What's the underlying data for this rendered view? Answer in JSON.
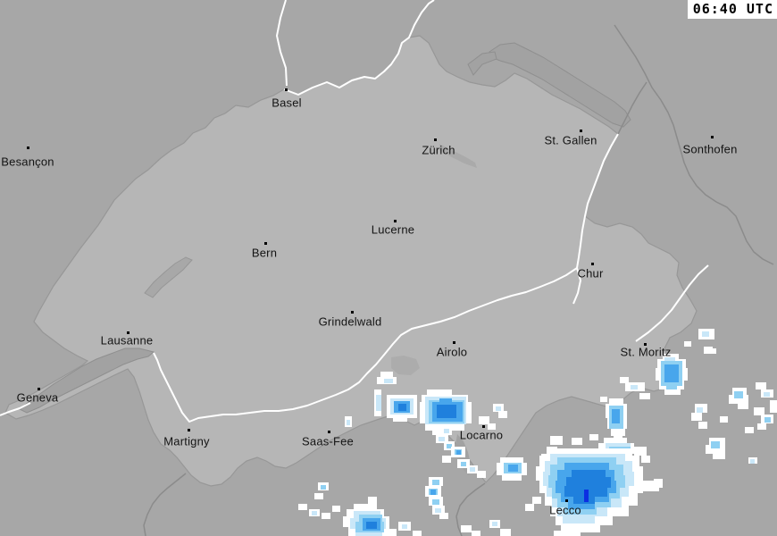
{
  "header": {
    "timestamp": "06:40 UTC"
  },
  "map": {
    "background_color": "#a7a7a7",
    "country_fill": "#b6b6b6",
    "lake_fill": "#a2a2a2",
    "border_color": "#8b8b8b",
    "river_color": "#ffffff",
    "label_color": "#141414",
    "cities": [
      {
        "name": "Basel",
        "dot": [
          320,
          100
        ],
        "label": [
          321,
          115
        ]
      },
      {
        "name": "Zürich",
        "dot": [
          487,
          156
        ],
        "label": [
          491,
          168
        ]
      },
      {
        "name": "St. Gallen",
        "dot": [
          650,
          146
        ],
        "label": [
          639,
          157
        ]
      },
      {
        "name": "Sonthofen",
        "dot": [
          797,
          153
        ],
        "label": [
          795,
          167
        ]
      },
      {
        "name": "Besançon",
        "dot": [
          31,
          165
        ],
        "label": [
          31,
          181
        ]
      },
      {
        "name": "Lucerne",
        "dot": [
          442,
          247
        ],
        "label": [
          440,
          257
        ]
      },
      {
        "name": "Bern",
        "dot": [
          297,
          272
        ],
        "label": [
          296,
          283
        ]
      },
      {
        "name": "Chur",
        "dot": [
          663,
          295
        ],
        "label": [
          661,
          306
        ]
      },
      {
        "name": "Grindelwald",
        "dot": [
          394,
          349
        ],
        "label": [
          392,
          360
        ]
      },
      {
        "name": "Lausanne",
        "dot": [
          143,
          372
        ],
        "label": [
          142,
          381
        ]
      },
      {
        "name": "Airolo",
        "dot": [
          508,
          383
        ],
        "label": [
          506,
          394
        ]
      },
      {
        "name": "St. Moritz",
        "dot": [
          722,
          385
        ],
        "label": [
          723,
          394
        ]
      },
      {
        "name": "Geneva",
        "dot": [
          43,
          435
        ],
        "label": [
          42,
          445
        ]
      },
      {
        "name": "Martigny",
        "dot": [
          211,
          481
        ],
        "label": [
          209,
          494
        ]
      },
      {
        "name": "Saas-Fee",
        "dot": [
          368,
          483
        ],
        "label": [
          367,
          494
        ]
      },
      {
        "name": "Locarno",
        "dot": [
          541,
          477
        ],
        "label": [
          539,
          487
        ]
      },
      {
        "name": "Lecco",
        "dot": [
          634,
          560
        ],
        "label": [
          633,
          571
        ]
      }
    ]
  },
  "radar": {
    "levels": {
      "1": "#ffffff",
      "2": "#c9e7f8",
      "3": "#8fd0f2",
      "4": "#48a6ec",
      "5": "#1f80dd",
      "6": "#0b2fe2"
    },
    "cells": [
      [
        1,
        426,
        416,
        14,
        8
      ],
      [
        1,
        422,
        422,
        22,
        8
      ],
      [
        2,
        430,
        424,
        10,
        5
      ],
      [
        1,
        419,
        436,
        8,
        30
      ],
      [
        2,
        421,
        442,
        6,
        18
      ],
      [
        1,
        433,
        442,
        34,
        26
      ],
      [
        2,
        437,
        446,
        26,
        18
      ],
      [
        4,
        441,
        449,
        18,
        13
      ],
      [
        5,
        446,
        452,
        9,
        8
      ],
      [
        1,
        440,
        466,
        16,
        6
      ],
      [
        1,
        478,
        436,
        28,
        8
      ],
      [
        1,
        472,
        442,
        52,
        10
      ],
      [
        1,
        470,
        450,
        58,
        24
      ],
      [
        1,
        476,
        472,
        44,
        10
      ],
      [
        1,
        484,
        480,
        22,
        7
      ],
      [
        2,
        476,
        444,
        46,
        31
      ],
      [
        3,
        480,
        448,
        40,
        26
      ],
      [
        4,
        484,
        450,
        34,
        22
      ],
      [
        5,
        489,
        453,
        22,
        15
      ],
      [
        4,
        492,
        446,
        14,
        6
      ],
      [
        1,
        494,
        478,
        12,
        8
      ],
      [
        2,
        497,
        480,
        6,
        5
      ],
      [
        1,
        488,
        486,
        14,
        10
      ],
      [
        2,
        491,
        489,
        7,
        5
      ],
      [
        1,
        497,
        494,
        12,
        10
      ],
      [
        3,
        500,
        497,
        6,
        5
      ],
      [
        1,
        505,
        500,
        16,
        12
      ],
      [
        3,
        509,
        503,
        8,
        6
      ],
      [
        4,
        511,
        504,
        5,
        5
      ],
      [
        1,
        495,
        510,
        10,
        8
      ],
      [
        1,
        512,
        514,
        14,
        10
      ],
      [
        3,
        516,
        517,
        6,
        5
      ],
      [
        1,
        523,
        521,
        12,
        9
      ],
      [
        2,
        526,
        523,
        6,
        5
      ],
      [
        1,
        534,
        527,
        10,
        8
      ],
      [
        1,
        552,
        452,
        12,
        9
      ],
      [
        2,
        555,
        455,
        6,
        5
      ],
      [
        1,
        558,
        460,
        10,
        8
      ],
      [
        1,
        536,
        466,
        12,
        9
      ],
      [
        1,
        546,
        474,
        9,
        7
      ],
      [
        1,
        560,
        512,
        26,
        8
      ],
      [
        1,
        556,
        518,
        34,
        14
      ],
      [
        1,
        562,
        530,
        22,
        8
      ],
      [
        3,
        564,
        518,
        20,
        12
      ],
      [
        4,
        569,
        520,
        11,
        8
      ],
      [
        1,
        742,
        396,
        18,
        8
      ],
      [
        1,
        736,
        402,
        32,
        12
      ],
      [
        1,
        734,
        412,
        36,
        14
      ],
      [
        1,
        738,
        424,
        28,
        12
      ],
      [
        1,
        744,
        434,
        18,
        8
      ],
      [
        2,
        744,
        400,
        12,
        6
      ],
      [
        3,
        740,
        404,
        24,
        28
      ],
      [
        4,
        744,
        408,
        16,
        20
      ],
      [
        3,
        746,
        430,
        12,
        6
      ],
      [
        1,
        700,
        428,
        22,
        10
      ],
      [
        2,
        706,
        431,
        8,
        5
      ],
      [
        1,
        694,
        422,
        10,
        7
      ],
      [
        1,
        716,
        440,
        12,
        7
      ],
      [
        1,
        782,
        368,
        18,
        12
      ],
      [
        2,
        786,
        371,
        8,
        6
      ],
      [
        1,
        788,
        388,
        10,
        8
      ],
      [
        1,
        766,
        382,
        8,
        6
      ],
      [
        1,
        682,
        446,
        16,
        8
      ],
      [
        1,
        678,
        452,
        24,
        16
      ],
      [
        1,
        680,
        466,
        22,
        14
      ],
      [
        1,
        684,
        478,
        16,
        10
      ],
      [
        1,
        687,
        486,
        10,
        6
      ],
      [
        3,
        682,
        454,
        16,
        26
      ],
      [
        4,
        685,
        458,
        9,
        16
      ],
      [
        1,
        672,
        444,
        8,
        6
      ],
      [
        1,
        778,
        452,
        14,
        10
      ],
      [
        2,
        780,
        456,
        7,
        6
      ],
      [
        1,
        774,
        462,
        12,
        9
      ],
      [
        1,
        782,
        472,
        10,
        8
      ],
      [
        1,
        794,
        490,
        18,
        10
      ],
      [
        1,
        790,
        498,
        22,
        10
      ],
      [
        3,
        796,
        494,
        10,
        8
      ],
      [
        1,
        798,
        506,
        14,
        8
      ],
      [
        1,
        820,
        434,
        16,
        10
      ],
      [
        1,
        816,
        442,
        22,
        10
      ],
      [
        3,
        822,
        438,
        10,
        8
      ],
      [
        1,
        826,
        450,
        12,
        8
      ],
      [
        1,
        846,
        428,
        12,
        8
      ],
      [
        1,
        852,
        436,
        14,
        9
      ],
      [
        2,
        855,
        439,
        7,
        5
      ],
      [
        1,
        844,
        456,
        12,
        9
      ],
      [
        1,
        852,
        464,
        14,
        10
      ],
      [
        3,
        856,
        467,
        7,
        6
      ],
      [
        1,
        848,
        474,
        10,
        7
      ],
      [
        1,
        862,
        448,
        8,
        14
      ],
      [
        1,
        834,
        478,
        10,
        7
      ],
      [
        1,
        806,
        466,
        9,
        7
      ],
      [
        1,
        794,
        390,
        8,
        6
      ],
      [
        1,
        838,
        512,
        10,
        7
      ],
      [
        2,
        840,
        514,
        5,
        5
      ],
      [
        1,
        676,
        490,
        26,
        10
      ],
      [
        1,
        670,
        496,
        40,
        12
      ],
      [
        2,
        678,
        496,
        28,
        10
      ],
      [
        3,
        682,
        500,
        24,
        12
      ],
      [
        4,
        688,
        502,
        14,
        8
      ],
      [
        1,
        710,
        500,
        14,
        10
      ],
      [
        1,
        718,
        510,
        10,
        8
      ],
      [
        3,
        676,
        508,
        26,
        10
      ],
      [
        4,
        680,
        504,
        18,
        8
      ],
      [
        2,
        700,
        520,
        16,
        10
      ],
      [
        3,
        696,
        514,
        14,
        8
      ],
      [
        1,
        616,
        488,
        14,
        10
      ],
      [
        1,
        640,
        490,
        12,
        8
      ],
      [
        1,
        660,
        486,
        10,
        7
      ],
      [
        1,
        612,
        500,
        12,
        8
      ],
      [
        1,
        606,
        508,
        16,
        10
      ],
      [
        1,
        612,
        502,
        96,
        10
      ],
      [
        1,
        604,
        510,
        112,
        14
      ],
      [
        1,
        600,
        522,
        120,
        16
      ],
      [
        1,
        604,
        536,
        116,
        16
      ],
      [
        1,
        610,
        550,
        104,
        16
      ],
      [
        1,
        616,
        564,
        88,
        14
      ],
      [
        1,
        622,
        576,
        64,
        12
      ],
      [
        1,
        628,
        586,
        44,
        10
      ],
      [
        1,
        620,
        594,
        30,
        6
      ],
      [
        2,
        616,
        508,
        84,
        10
      ],
      [
        2,
        610,
        516,
        98,
        14
      ],
      [
        2,
        608,
        528,
        102,
        16
      ],
      [
        2,
        612,
        542,
        92,
        14
      ],
      [
        2,
        618,
        554,
        78,
        14
      ],
      [
        2,
        624,
        566,
        56,
        12
      ],
      [
        2,
        630,
        576,
        36,
        10
      ],
      [
        3,
        624,
        512,
        66,
        10
      ],
      [
        3,
        616,
        520,
        82,
        14
      ],
      [
        3,
        614,
        532,
        86,
        14
      ],
      [
        3,
        618,
        544,
        76,
        14
      ],
      [
        3,
        624,
        556,
        60,
        12
      ],
      [
        3,
        632,
        566,
        36,
        10
      ],
      [
        4,
        632,
        518,
        50,
        10
      ],
      [
        4,
        624,
        526,
        64,
        14
      ],
      [
        4,
        622,
        538,
        68,
        14
      ],
      [
        4,
        628,
        550,
        54,
        12
      ],
      [
        4,
        636,
        560,
        30,
        10
      ],
      [
        5,
        640,
        526,
        38,
        10
      ],
      [
        5,
        634,
        534,
        50,
        12
      ],
      [
        5,
        632,
        544,
        48,
        12
      ],
      [
        5,
        642,
        554,
        24,
        10
      ],
      [
        6,
        654,
        548,
        5,
        14
      ],
      [
        1,
        732,
        536,
        10,
        10
      ],
      [
        1,
        720,
        538,
        18,
        12
      ],
      [
        1,
        596,
        556,
        10,
        8
      ],
      [
        1,
        588,
        564,
        10,
        8
      ],
      [
        1,
        396,
        564,
        26,
        8
      ],
      [
        1,
        388,
        570,
        42,
        10
      ],
      [
        1,
        384,
        578,
        52,
        12
      ],
      [
        1,
        390,
        588,
        46,
        12
      ],
      [
        1,
        398,
        596,
        34,
        4
      ],
      [
        2,
        396,
        572,
        30,
        10
      ],
      [
        2,
        392,
        580,
        40,
        12
      ],
      [
        2,
        398,
        590,
        30,
        10
      ],
      [
        3,
        402,
        576,
        26,
        10
      ],
      [
        3,
        398,
        584,
        32,
        12
      ],
      [
        4,
        406,
        580,
        20,
        14
      ],
      [
        5,
        410,
        584,
        12,
        8
      ],
      [
        1,
        430,
        592,
        14,
        8
      ],
      [
        1,
        480,
        534,
        16,
        10
      ],
      [
        3,
        484,
        537,
        8,
        6
      ],
      [
        1,
        476,
        544,
        18,
        12
      ],
      [
        3,
        480,
        547,
        10,
        7
      ],
      [
        4,
        482,
        548,
        6,
        6
      ],
      [
        1,
        480,
        556,
        16,
        10
      ],
      [
        3,
        484,
        559,
        8,
        6
      ],
      [
        1,
        484,
        566,
        14,
        10
      ],
      [
        2,
        487,
        569,
        7,
        5
      ],
      [
        1,
        492,
        574,
        10,
        7
      ],
      [
        1,
        356,
        540,
        12,
        9
      ],
      [
        3,
        359,
        543,
        6,
        5
      ],
      [
        1,
        352,
        552,
        10,
        7
      ],
      [
        1,
        334,
        564,
        10,
        7
      ],
      [
        1,
        346,
        570,
        12,
        8
      ],
      [
        2,
        349,
        572,
        6,
        5
      ],
      [
        1,
        360,
        574,
        10,
        7
      ],
      [
        1,
        372,
        566,
        9,
        7
      ],
      [
        1,
        412,
        556,
        10,
        8
      ],
      [
        1,
        446,
        584,
        14,
        10
      ],
      [
        2,
        450,
        587,
        6,
        5
      ],
      [
        1,
        462,
        594,
        10,
        6
      ],
      [
        1,
        516,
        588,
        12,
        8
      ],
      [
        1,
        528,
        594,
        10,
        6
      ],
      [
        1,
        548,
        582,
        12,
        9
      ],
      [
        2,
        551,
        584,
        6,
        5
      ],
      [
        1,
        560,
        592,
        12,
        8
      ],
      [
        1,
        386,
        466,
        8,
        12
      ],
      [
        2,
        388,
        470,
        4,
        6
      ]
    ]
  }
}
